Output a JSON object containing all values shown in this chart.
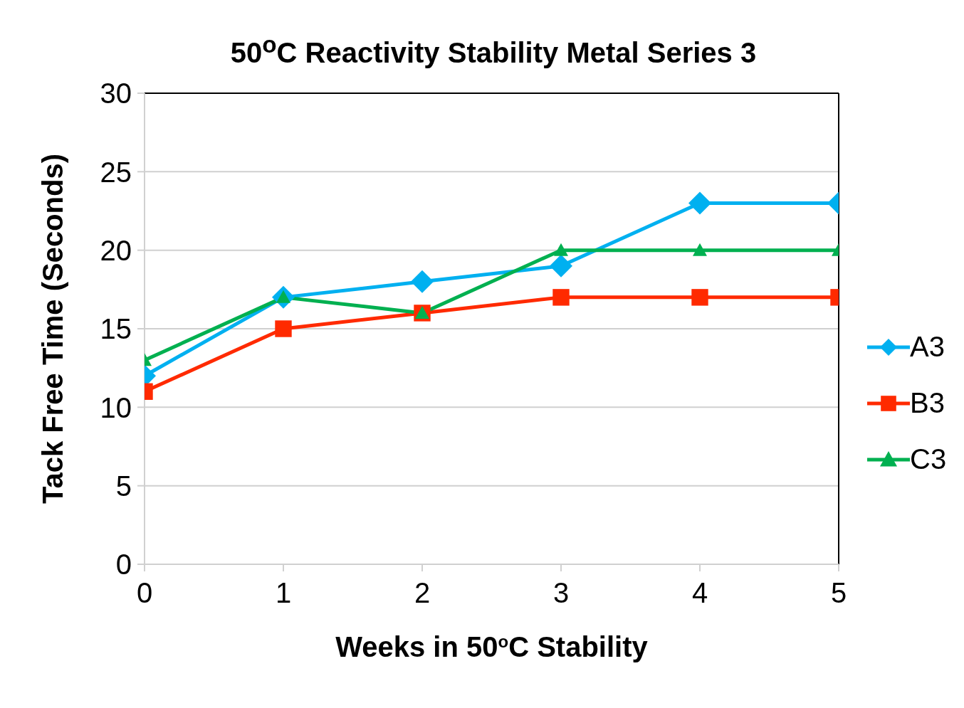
{
  "chart_data": {
    "type": "line",
    "title": "50$^{o}$C Reactivity Stability Metal Series 3",
    "xlabel": "Weeks in 50$^{o}$C Stability",
    "ylabel": "Tack Free Time (Seconds)",
    "x": [
      0,
      1,
      2,
      3,
      4,
      5
    ],
    "series": [
      {
        "name": "A3",
        "color": "#00b0f0",
        "marker": "diamond",
        "values": [
          12,
          17,
          18,
          19,
          23,
          23
        ]
      },
      {
        "name": "B3",
        "color": "#ff2a00",
        "marker": "square",
        "values": [
          11,
          15,
          16,
          17,
          17,
          17
        ]
      },
      {
        "name": "C3",
        "color": "#00b050",
        "marker": "triangle",
        "values": [
          13,
          17,
          16,
          20,
          20,
          20
        ]
      }
    ],
    "xlim": [
      0,
      5
    ],
    "xticks": [
      0,
      1,
      2,
      3,
      4,
      5
    ],
    "ylim": [
      0,
      30
    ],
    "yticks": [
      0,
      5,
      10,
      15,
      20,
      25,
      30
    ],
    "grid": "y",
    "legend": "right",
    "line_style": "solid"
  }
}
